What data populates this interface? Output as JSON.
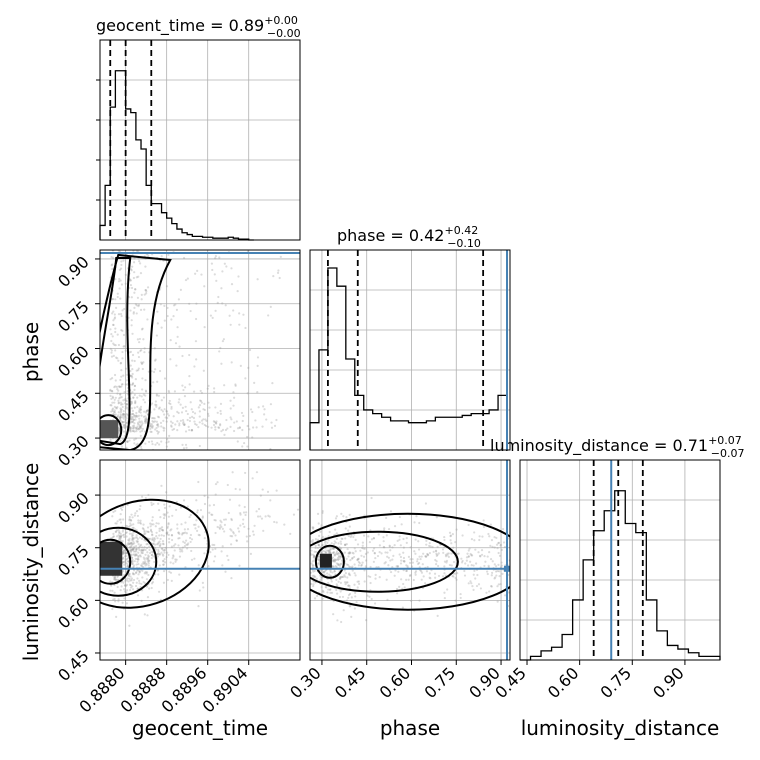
{
  "chart_data": {
    "type": "corner",
    "parameters": [
      "geocent_time",
      "phase",
      "luminosity_distance"
    ],
    "titles": [
      {
        "param": "geocent_time",
        "text": "geocent_time = 0.89",
        "sup": "+0.00",
        "sub": "−0.00"
      },
      {
        "param": "phase",
        "text": "phase = 0.42",
        "sup": "+0.42",
        "sub": "−0.10"
      },
      {
        "param": "luminosity_distance",
        "text": "luminosity_distance = 0.71",
        "sup": "+0.07",
        "sub": "−0.07"
      }
    ],
    "axes": {
      "geocent_time": {
        "label": "geocent_time",
        "range": [
          0.8875,
          0.8914
        ],
        "ticks": [
          "0.8880",
          "0.8888",
          "0.8896",
          "0.8904"
        ],
        "tick_values": [
          0.888,
          0.8888,
          0.8896,
          0.8904
        ]
      },
      "phase": {
        "label": "phase",
        "range": [
          0.26,
          0.93
        ],
        "ticks": [
          "0.30",
          "0.45",
          "0.60",
          "0.75",
          "0.90"
        ],
        "tick_values": [
          0.3,
          0.45,
          0.6,
          0.75,
          0.9
        ]
      },
      "luminosity_distance": {
        "label": "luminosity_distance",
        "range": [
          0.43,
          1.0
        ],
        "ticks": [
          "0.45",
          "0.60",
          "0.75",
          "0.90"
        ],
        "tick_values": [
          0.45,
          0.6,
          0.75,
          0.9
        ]
      }
    },
    "truths": {
      "phase": 0.92,
      "luminosity_distance": 0.69
    },
    "quantiles": {
      "geocent_time": [
        0.8877,
        0.888,
        0.8885
      ],
      "phase": [
        0.32,
        0.42,
        0.84
      ],
      "luminosity_distance": [
        0.64,
        0.71,
        0.78
      ]
    },
    "histograms": {
      "geocent_time": {
        "bin_edges": [
          0.8875,
          0.8876,
          0.8877,
          0.8878,
          0.8879,
          0.888,
          0.8881,
          0.8882,
          0.8883,
          0.8884,
          0.8885,
          0.8886,
          0.8887,
          0.8888,
          0.8889,
          0.889,
          0.8891,
          0.8892,
          0.8893,
          0.8894,
          0.8895,
          0.8896,
          0.8897,
          0.8898,
          0.8899,
          0.89,
          0.8901,
          0.8902,
          0.8903,
          0.8904,
          0.8905
        ],
        "counts": [
          0.08,
          0.3,
          0.73,
          0.93,
          0.93,
          0.72,
          0.7,
          0.55,
          0.5,
          0.3,
          0.2,
          0.2,
          0.15,
          0.12,
          0.09,
          0.06,
          0.04,
          0.03,
          0.02,
          0.02,
          0.015,
          0.015,
          0.01,
          0.01,
          0.01,
          0.015,
          0.01,
          0.005,
          0.005,
          0.0
        ]
      },
      "phase": {
        "bin_edges": [
          0.26,
          0.29,
          0.32,
          0.35,
          0.38,
          0.41,
          0.44,
          0.47,
          0.5,
          0.53,
          0.56,
          0.59,
          0.62,
          0.65,
          0.68,
          0.71,
          0.74,
          0.77,
          0.8,
          0.83,
          0.86,
          0.89,
          0.92
        ],
        "counts": [
          0.15,
          0.55,
          1.0,
          0.9,
          0.5,
          0.3,
          0.22,
          0.2,
          0.18,
          0.16,
          0.16,
          0.15,
          0.15,
          0.16,
          0.18,
          0.18,
          0.18,
          0.19,
          0.2,
          0.2,
          0.22,
          0.3
        ]
      },
      "luminosity_distance": {
        "bin_edges": [
          0.43,
          0.46,
          0.49,
          0.52,
          0.55,
          0.58,
          0.61,
          0.64,
          0.67,
          0.7,
          0.73,
          0.76,
          0.79,
          0.82,
          0.85,
          0.88,
          0.91,
          0.94,
          0.97,
          1.0
        ],
        "counts": [
          0.0,
          0.02,
          0.05,
          0.07,
          0.14,
          0.33,
          0.55,
          0.71,
          0.82,
          0.93,
          0.75,
          0.7,
          0.33,
          0.16,
          0.08,
          0.06,
          0.04,
          0.02,
          0.02
        ]
      }
    },
    "grid": true,
    "samples_style": "grey scatter with density contours"
  }
}
